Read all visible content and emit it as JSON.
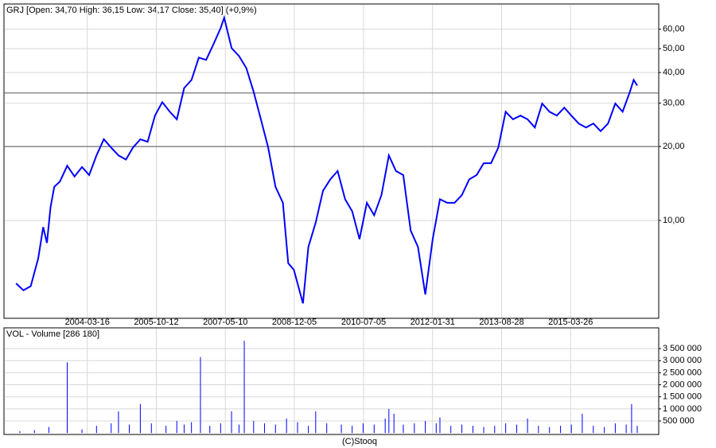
{
  "chart_data": [
    {
      "type": "line",
      "title": "GRJ [Open: 34,70  High: 36,15  Low: 34,17  Close: 35,40] (+0,9%)",
      "log_scale": true,
      "grid": true,
      "color": "#0000ff",
      "xlim": [
        "2002-04-22",
        "2017-03-29"
      ],
      "xticks": [
        "2004-03-16",
        "2005-10-12",
        "2007-05-10",
        "2008-12-05",
        "2010-07-05",
        "2012-01-31",
        "2013-08-28",
        "2015-03-26"
      ],
      "ylim": [
        4,
        76
      ],
      "yticks": [
        {
          "value": 10,
          "label": "10,00"
        },
        {
          "value": 20,
          "label": "20,00"
        },
        {
          "value": 30,
          "label": "30,00"
        },
        {
          "value": 40,
          "label": "40,00"
        },
        {
          "value": 50,
          "label": "50,00"
        },
        {
          "value": 60,
          "label": "60,00"
        }
      ],
      "hlines": [
        33,
        20
      ],
      "x": [
        "2002-08-01",
        "2002-10-01",
        "2002-12-01",
        "2003-02-01",
        "2003-03-15",
        "2003-04-15",
        "2003-05-15",
        "2003-06-15",
        "2003-08-01",
        "2003-10-01",
        "2003-12-01",
        "2004-02-01",
        "2004-04-01",
        "2004-06-01",
        "2004-08-01",
        "2004-10-01",
        "2004-12-01",
        "2005-02-01",
        "2005-04-01",
        "2005-06-01",
        "2005-08-01",
        "2005-10-01",
        "2005-12-01",
        "2006-02-01",
        "2006-04-01",
        "2006-06-01",
        "2006-08-01",
        "2006-10-01",
        "2006-12-01",
        "2007-02-01",
        "2007-04-01",
        "2007-05-01",
        "2007-07-01",
        "2007-09-01",
        "2007-11-01",
        "2008-01-01",
        "2008-03-01",
        "2008-05-01",
        "2008-07-01",
        "2008-09-01",
        "2008-10-15",
        "2008-12-01",
        "2009-02-15",
        "2009-04-01",
        "2009-06-01",
        "2009-08-01",
        "2009-10-01",
        "2009-12-01",
        "2010-02-01",
        "2010-04-01",
        "2010-06-01",
        "2010-08-01",
        "2010-10-01",
        "2010-12-01",
        "2011-02-01",
        "2011-04-01",
        "2011-06-01",
        "2011-08-01",
        "2011-10-01",
        "2011-12-01",
        "2012-02-01",
        "2012-04-01",
        "2012-06-01",
        "2012-08-01",
        "2012-10-01",
        "2012-12-01",
        "2013-02-01",
        "2013-04-01",
        "2013-06-01",
        "2013-08-01",
        "2013-10-01",
        "2013-12-01",
        "2014-02-01",
        "2014-04-01",
        "2014-06-01",
        "2014-08-01",
        "2014-10-01",
        "2014-12-01",
        "2015-02-01",
        "2015-04-01",
        "2015-06-01",
        "2015-08-01",
        "2015-10-01",
        "2015-12-01",
        "2016-02-01",
        "2016-04-01",
        "2016-06-01",
        "2016-08-01",
        "2016-09-01",
        "2016-10-01"
      ],
      "values": [
        5.55,
        5.2,
        5.4,
        7.0,
        9.4,
        8.1,
        11.3,
        13.7,
        14.4,
        16.7,
        15.1,
        16.5,
        15.3,
        18.4,
        21.4,
        19.8,
        18.4,
        17.7,
        19.8,
        21.4,
        20.9,
        26.7,
        30.3,
        27.7,
        25.8,
        34.6,
        37.3,
        46.0,
        45.0,
        52.2,
        60.6,
        66.8,
        50.3,
        46.7,
        41.7,
        33.4,
        25.8,
        19.8,
        13.7,
        11.8,
        6.7,
        6.3,
        4.6,
        7.8,
        9.8,
        13.2,
        14.7,
        15.9,
        12.2,
        10.9,
        8.4,
        11.8,
        10.5,
        12.7,
        18.4,
        15.9,
        15.3,
        9.1,
        7.8,
        5.0,
        8.4,
        12.2,
        11.8,
        11.8,
        12.7,
        14.7,
        15.3,
        17.1,
        17.1,
        19.8,
        27.7,
        25.8,
        26.7,
        25.8,
        23.9,
        29.9,
        27.7,
        26.7,
        28.8,
        26.7,
        24.8,
        23.9,
        24.8,
        23.1,
        24.8,
        29.9,
        27.7,
        33.4,
        37.3,
        35.4
      ]
    },
    {
      "type": "bar",
      "title": "VOL - Volume [286 180]",
      "color": "#0000ff",
      "grid": true,
      "xlim": [
        "2002-04-22",
        "2017-03-29"
      ],
      "ylim": [
        -60000,
        4360000
      ],
      "yticks": [
        {
          "value": 500000,
          "label": "500 000"
        },
        {
          "value": 1000000,
          "label": "1 000 000"
        },
        {
          "value": 1500000,
          "label": "1 500 000"
        },
        {
          "value": 2000000,
          "label": "2 000 000"
        },
        {
          "value": 2500000,
          "label": "2 500 000"
        },
        {
          "value": 3000000,
          "label": "3 000 000"
        },
        {
          "value": 3500000,
          "label": "3 500 000"
        }
      ],
      "x": [
        "2002-09-01",
        "2003-01-01",
        "2003-05-01",
        "2003-10-01",
        "2004-02-01",
        "2004-06-01",
        "2004-10-01",
        "2004-12-01",
        "2005-03-01",
        "2005-06-01",
        "2005-09-01",
        "2006-01-01",
        "2006-04-01",
        "2006-06-01",
        "2006-08-01",
        "2006-10-15",
        "2007-01-01",
        "2007-04-01",
        "2007-07-01",
        "2007-09-01",
        "2007-10-15",
        "2008-01-01",
        "2008-04-01",
        "2008-07-01",
        "2008-10-01",
        "2009-01-01",
        "2009-04-01",
        "2009-06-01",
        "2009-09-01",
        "2010-01-01",
        "2010-04-01",
        "2010-07-01",
        "2010-10-01",
        "2011-01-01",
        "2011-02-01",
        "2011-03-15",
        "2011-06-01",
        "2011-09-01",
        "2011-12-01",
        "2012-03-01",
        "2012-04-01",
        "2012-07-01",
        "2012-10-01",
        "2013-01-01",
        "2013-04-01",
        "2013-07-01",
        "2013-10-01",
        "2014-01-01",
        "2014-04-01",
        "2014-07-01",
        "2014-10-01",
        "2015-01-01",
        "2015-04-01",
        "2015-07-01",
        "2015-10-01",
        "2016-01-01",
        "2016-04-01",
        "2016-07-01",
        "2016-08-15",
        "2016-10-01"
      ],
      "values": [
        80000,
        120000,
        250000,
        2930000,
        150000,
        300000,
        400000,
        900000,
        350000,
        1200000,
        400000,
        300000,
        500000,
        350000,
        450000,
        3150000,
        300000,
        400000,
        900000,
        350000,
        3820000,
        500000,
        400000,
        350000,
        600000,
        450000,
        300000,
        900000,
        400000,
        350000,
        300000,
        400000,
        350000,
        600000,
        1000000,
        800000,
        350000,
        400000,
        500000,
        400000,
        650000,
        300000,
        350000,
        300000,
        250000,
        300000,
        400000,
        350000,
        600000,
        300000,
        250000,
        300000,
        350000,
        800000,
        300000,
        250000,
        400000,
        350000,
        1200000,
        300000
      ]
    }
  ],
  "footer": "(C)Stooq"
}
